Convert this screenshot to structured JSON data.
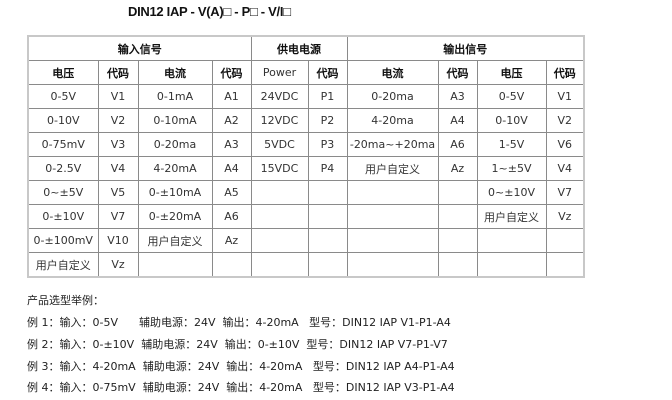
{
  "title": "DIN12 IAP - V(A)□ - P□ - V/I□",
  "table": {
    "group_headers": [
      {
        "label": "输入信号",
        "span": 4
      },
      {
        "label": "供电电源",
        "span": 2
      },
      {
        "label": "输出信号",
        "span": 4
      }
    ],
    "column_headers": [
      "电压",
      "代码",
      "电流",
      "代码",
      "Power",
      "代码",
      "电流",
      "代码",
      "电压",
      "代码"
    ],
    "rows": [
      [
        "0-5V",
        "V1",
        "0-1mA",
        "A1",
        "24VDC",
        "P1",
        "0-20ma",
        "A3",
        "0-5V",
        "V1"
      ],
      [
        "0-10V",
        "V2",
        "0-10mA",
        "A2",
        "12VDC",
        "P2",
        "4-20ma",
        "A4",
        "0-10V",
        "V2"
      ],
      [
        "0-75mV",
        "V3",
        "0-20ma",
        "A3",
        "5VDC",
        "P3",
        "-20ma~+20ma",
        "A6",
        "1-5V",
        "V6"
      ],
      [
        "0-2.5V",
        "V4",
        "4-20mA",
        "A4",
        "15VDC",
        "P4",
        "用户自定义",
        "Az",
        "1~±5V",
        "V4"
      ],
      [
        "0~±5V",
        "V5",
        "0-±10mA",
        "A5",
        "",
        "",
        "",
        "",
        "0~±10V",
        "V7"
      ],
      [
        "0-±10V",
        "V7",
        "0-±20mA",
        "A6",
        "",
        "",
        "",
        "",
        "用户自定义",
        "Vz"
      ],
      [
        "0-±100mV",
        "V10",
        "用户自定义",
        "Az",
        "",
        "",
        "",
        "",
        "",
        ""
      ],
      [
        "用户自定义",
        "Vz",
        "",
        "",
        "",
        "",
        "",
        "",
        "",
        ""
      ]
    ]
  },
  "examples": {
    "heading": "产品选型举例：",
    "lines": [
      "例 1：输入：0-5V      辅助电源：24V  输出：4-20mA   型号：DIN12 IAP V1-P1-A4",
      "例 2：输入：0-±10V  辅助电源：24V  输出：0-±10V  型号：DIN12 IAP V7-P1-V7",
      "例 3：输入：4-20mA  辅助电源：24V  输出：4-20mA   型号：DIN12 IAP A4-P1-A4",
      "例 4：输入：0-75mV  辅助电源：24V  输出：4-20mA   型号：DIN12 IAP V3-P1-A4"
    ]
  }
}
